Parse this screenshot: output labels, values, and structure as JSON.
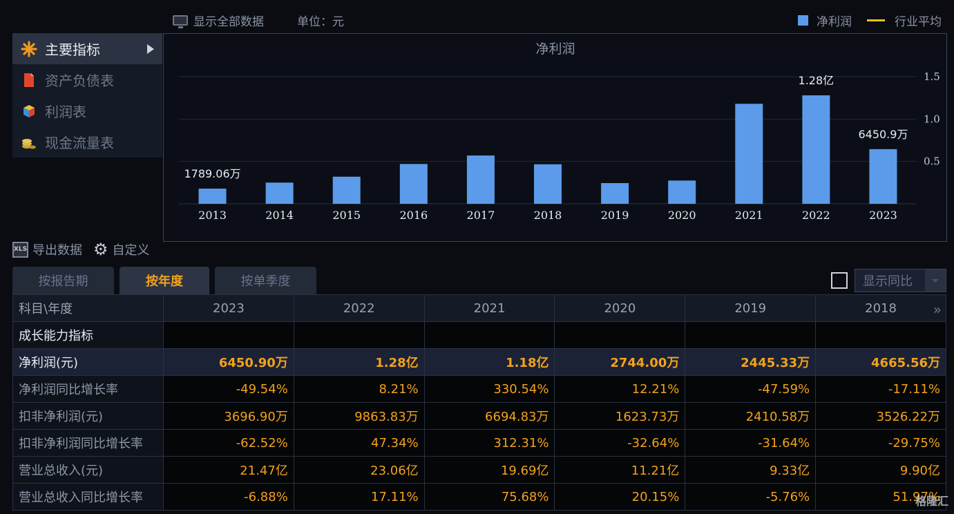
{
  "topbar": {
    "show_all_label": "显示全部数据",
    "unit_label": "单位：元",
    "legend_net_profit": "净利润",
    "legend_industry_avg": "行业平均"
  },
  "menu": {
    "items": [
      {
        "label": "主要指标",
        "icon": "asterisk-icon"
      },
      {
        "label": "资产负债表",
        "icon": "document-icon"
      },
      {
        "label": "利润表",
        "icon": "cube-icon"
      },
      {
        "label": "现金流量表",
        "icon": "coins-icon"
      }
    ]
  },
  "chart_data": {
    "type": "bar",
    "title": "净利润",
    "categories": [
      "2013",
      "2014",
      "2015",
      "2016",
      "2017",
      "2018",
      "2019",
      "2020",
      "2021",
      "2022",
      "2023"
    ],
    "series": [
      {
        "name": "净利润",
        "values": [
          0.179,
          0.25,
          0.32,
          0.47,
          0.57,
          0.4666,
          0.2445,
          0.2744,
          1.18,
          1.28,
          0.645
        ]
      }
    ],
    "value_unit": "亿",
    "y_ticks": [
      "0.5",
      "1.0",
      "1.5"
    ],
    "ylim": [
      0,
      1.5
    ],
    "data_labels": [
      {
        "index": 0,
        "text": "1789.06万"
      },
      {
        "index": 9,
        "text": "1.28亿"
      },
      {
        "index": 10,
        "text": "6450.9万"
      }
    ],
    "bar_color": "#5b9bea",
    "grid": true,
    "y_axis_side": "right"
  },
  "tools": {
    "export_label": "导出数据",
    "customize_label": "自定义"
  },
  "tabs": [
    {
      "label": "按报告期",
      "active": false
    },
    {
      "label": "按年度",
      "active": true
    },
    {
      "label": "按单季度",
      "active": false
    }
  ],
  "yoy": {
    "label": "显示同比"
  },
  "table": {
    "corner": "科目\\年度",
    "years": [
      "2023",
      "2022",
      "2021",
      "2020",
      "2019",
      "2018"
    ],
    "section": "成长能力指标",
    "rows": [
      {
        "name": "净利润(元)",
        "values": [
          "6450.90万",
          "1.28亿",
          "1.18亿",
          "2744.00万",
          "2445.33万",
          "4665.56万"
        ]
      },
      {
        "name": "净利润同比增长率",
        "values": [
          "-49.54%",
          "8.21%",
          "330.54%",
          "12.21%",
          "-47.59%",
          "-17.11%"
        ]
      },
      {
        "name": "扣非净利润(元)",
        "values": [
          "3696.90万",
          "9863.83万",
          "6694.83万",
          "1623.73万",
          "2410.58万",
          "3526.22万"
        ]
      },
      {
        "name": "扣非净利润同比增长率",
        "values": [
          "-62.52%",
          "47.34%",
          "312.31%",
          "-32.64%",
          "-31.64%",
          "-29.75%"
        ]
      },
      {
        "name": "营业总收入(元)",
        "values": [
          "21.47亿",
          "23.06亿",
          "19.69亿",
          "11.21亿",
          "9.33亿",
          "9.90亿"
        ]
      },
      {
        "name": "营业总收入同比增长率",
        "values": [
          "-6.88%",
          "17.11%",
          "75.68%",
          "20.15%",
          "-5.76%",
          "51.97%"
        ]
      }
    ]
  },
  "watermark": "格隆汇"
}
